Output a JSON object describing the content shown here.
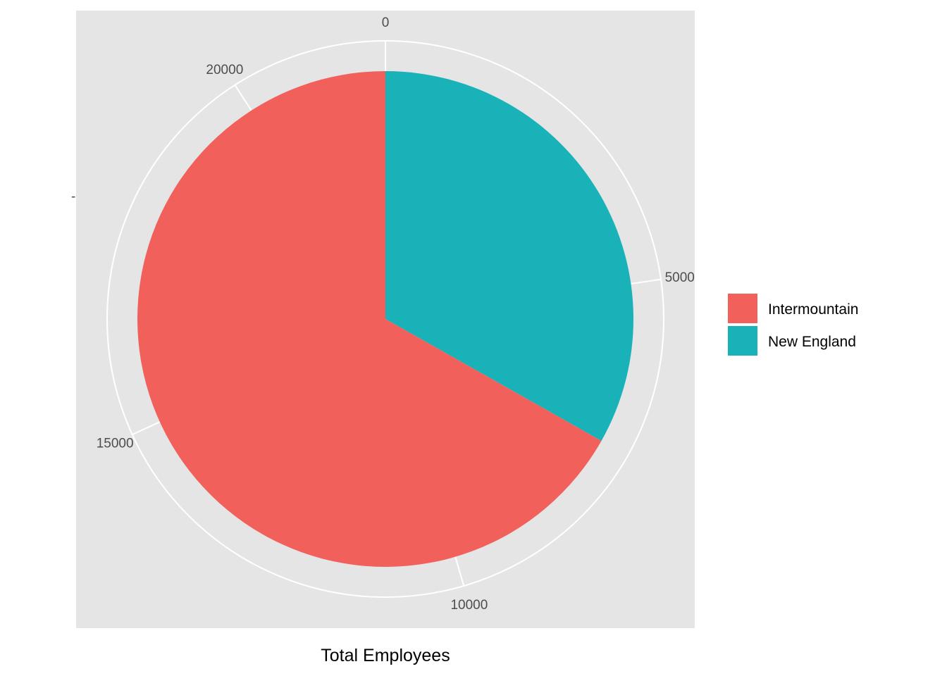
{
  "chart_data": {
    "type": "pie",
    "title": "",
    "xlabel": "Total Employees",
    "ylabel": "",
    "y_tick_label": "-",
    "theta_range": [
      0,
      22000
    ],
    "theta_ticks": [
      0,
      5000,
      10000,
      15000,
      20000
    ],
    "grid": true,
    "legend_position": "right",
    "slices": [
      {
        "name": "New England",
        "value": 7300,
        "color": "#19B2B8"
      },
      {
        "name": "Intermountain",
        "value": 14700,
        "color": "#F2605C"
      }
    ],
    "legend": [
      {
        "label": "Intermountain",
        "color": "#F2605C"
      },
      {
        "label": "New England",
        "color": "#19B2B8"
      }
    ]
  },
  "colors": {
    "panel_background": "#E5E5E5",
    "grid": "#FFFFFF"
  }
}
